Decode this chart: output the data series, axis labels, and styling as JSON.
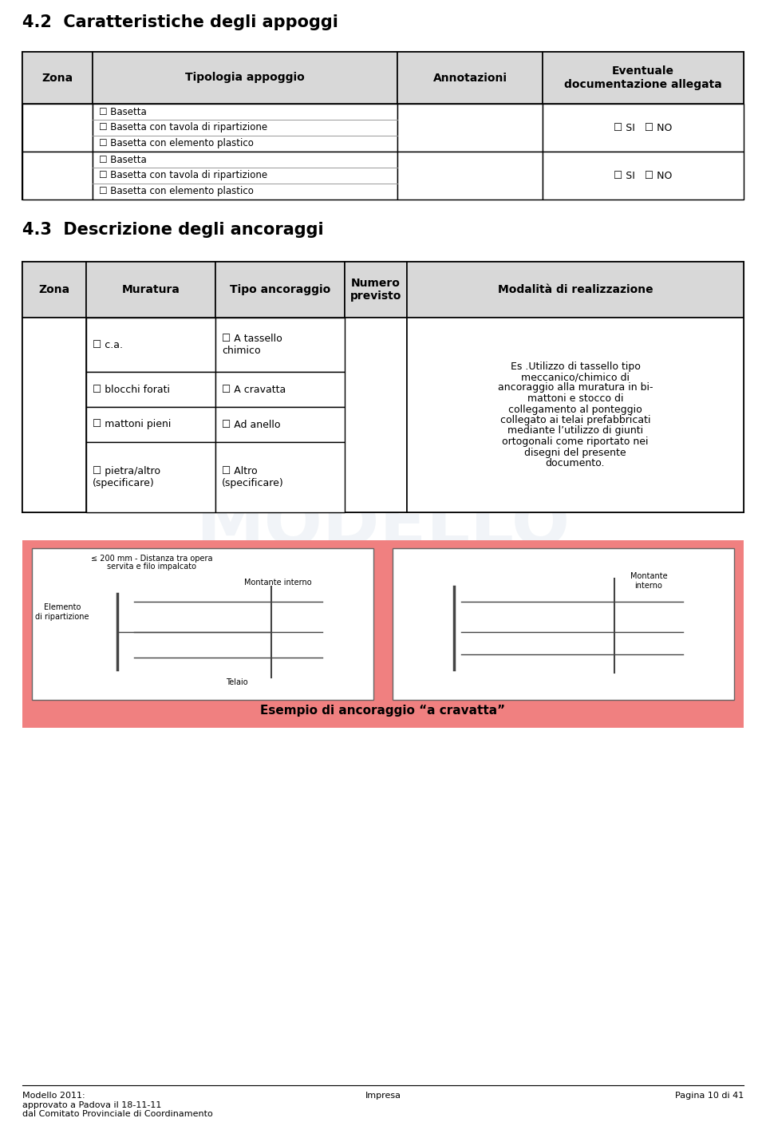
{
  "title1": "4.2  Caratteristiche degli appoggi",
  "title2": "4.3  Descrizione degli ancoraggi",
  "table1_headers": [
    "Zona",
    "Tipologia appoggio",
    "Annotazioni",
    "Eventuale\ndocumentazione allegata"
  ],
  "table2_headers": [
    "Zona",
    "Muratura",
    "Tipo ancoraggio",
    "Numero\nprevisto",
    "Modalità di realizzazione"
  ],
  "table2_col2": [
    "☐ c.a.",
    "☐ blocchi forati",
    "☐ mattoni pieni",
    "☐ pietra/altro\n(specificare)"
  ],
  "table2_col3": [
    "☐ A tassello\nchimico",
    "☐ A cravatta",
    "☐ Ad anello",
    "☐ Altro\n(specificare)"
  ],
  "table2_col5_lines": [
    "Es .Utilizzo di tassello tipo",
    "meccanico/chimico di",
    "ancoraggio alla muratura in bi-",
    "mattoni e stocco di",
    "collegamento al ponteggio",
    "collegato ai telai prefabbricati",
    "mediante l’utilizzo di giunti",
    "ortogonali come riportato nei",
    "disegni del presente",
    "documento."
  ],
  "header_bg": "#d8d8d8",
  "pink_bg": "#f08080",
  "caption": "Esempio di ancoraggio “a cravatta”",
  "footer_left": "Modello 2011:\napprovato a Padova il 18-11-11\ndal Comitato Provinciale di Coordinamento",
  "footer_center": "Impresa",
  "footer_right": "Pagina 10 di 41",
  "bg_color": "#ffffff",
  "left_diag_labels": [
    [
      "≤ 200 mm - Distanza tra opera",
      "servita e filo impalcato",
      "top_center"
    ],
    [
      "Montante interno",
      "right_top"
    ],
    [
      "Elemento\ndi ripartizione",
      "left_mid"
    ],
    [
      "Telaio",
      "bottom_center"
    ]
  ],
  "right_diag_labels": [
    [
      "Montante\ninterno",
      "right_top"
    ]
  ]
}
